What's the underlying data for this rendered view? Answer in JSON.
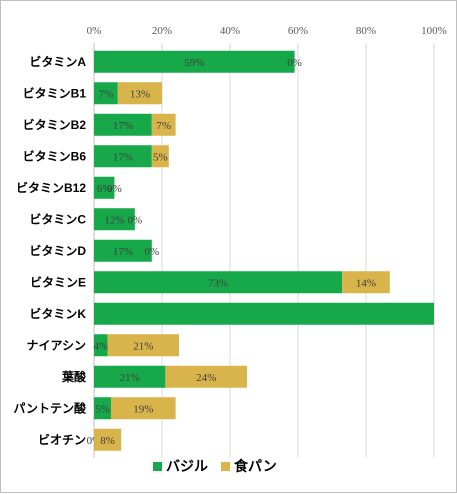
{
  "chart_data": {
    "type": "bar",
    "orientation": "horizontal",
    "stacked": true,
    "categories": [
      "ビタミンA",
      "ビタミンB1",
      "ビタミンB2",
      "ビタミンB6",
      "ビタミンB12",
      "ビタミンC",
      "ビタミンD",
      "ビタミンE",
      "ビタミンK",
      "ナイアシン",
      "葉酸",
      "パントテン酸",
      "ビオチン"
    ],
    "series": [
      {
        "name": "バジル",
        "color": "#17a84a",
        "values": [
          59,
          7,
          17,
          17,
          6,
          12,
          17,
          73,
          100,
          4,
          21,
          5,
          0
        ],
        "labels": [
          "59%",
          "7%",
          "17%",
          "17%",
          "6%",
          "12%",
          "17%",
          "73%",
          "",
          "4%",
          "21%",
          "5%",
          "0%"
        ]
      },
      {
        "name": "食パン",
        "color": "#d9b44a",
        "values": [
          0,
          13,
          7,
          5,
          0,
          0,
          0,
          14,
          0,
          21,
          24,
          19,
          8
        ],
        "labels": [
          "0%",
          "13%",
          "7%",
          "5%",
          "0%",
          "0%",
          "0%",
          "14%",
          "",
          "21%",
          "24%",
          "19%",
          "8%"
        ]
      }
    ],
    "xlim": [
      0,
      100
    ],
    "x_ticks": [
      "0%",
      "20%",
      "40%",
      "60%",
      "80%",
      "100%"
    ],
    "x_axis_position": "top",
    "grid": true,
    "legend_position": "bottom"
  }
}
